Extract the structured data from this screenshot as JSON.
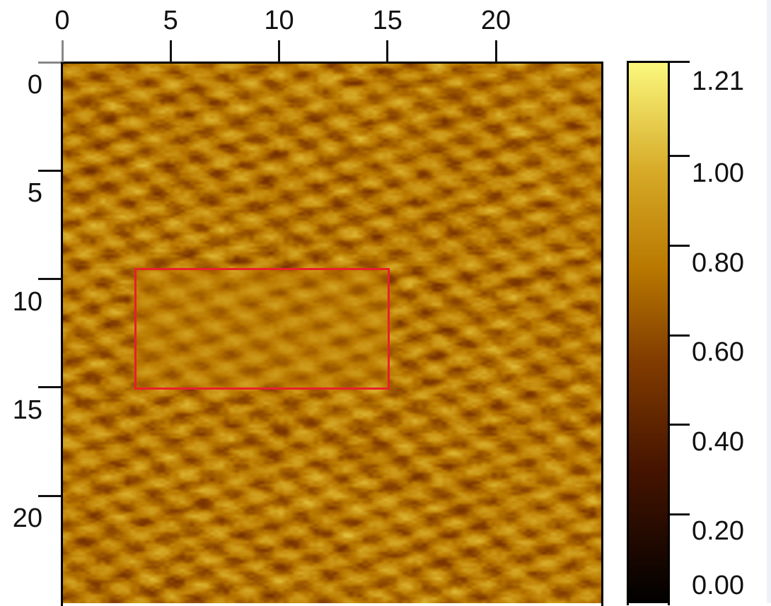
{
  "chart_data": {
    "type": "heatmap",
    "title": "",
    "xlabel": "",
    "ylabel": "",
    "x_ticks": [
      "0",
      "5",
      "10",
      "15",
      "20"
    ],
    "y_ticks": [
      "0",
      "5",
      "10",
      "15",
      "20"
    ],
    "xlim": [
      0,
      25
    ],
    "ylim": [
      0,
      25
    ],
    "x_axis_position": "top",
    "colorbar": {
      "ticks": [
        "1.21",
        "1.00",
        "0.80",
        "0.60",
        "0.40",
        "0.20",
        "0.00"
      ],
      "tick_values": [
        1.0,
        0.8,
        0.6,
        0.4,
        0.2
      ],
      "range": [
        0.0,
        1.21
      ],
      "colormap": "afm-hot-gold",
      "placement": "right"
    },
    "region_of_interest": {
      "x": [
        3.33,
        15.0
      ],
      "y": [
        9.5,
        15.0
      ],
      "color": "#e8202a"
    }
  }
}
